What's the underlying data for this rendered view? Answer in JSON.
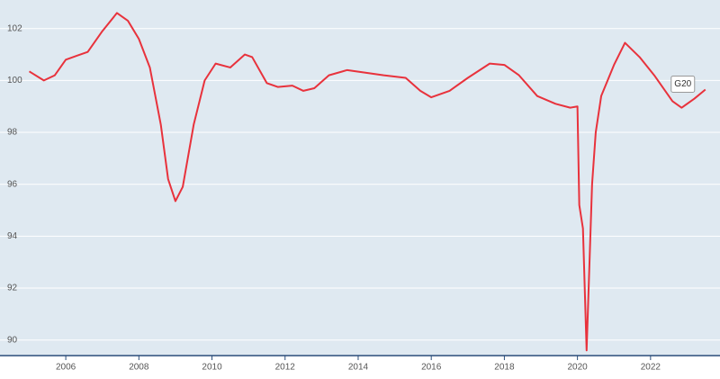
{
  "chart_data": {
    "type": "line",
    "x": [
      2005.0,
      2005.4,
      2005.7,
      2006.0,
      2006.3,
      2006.6,
      2007.0,
      2007.4,
      2007.7,
      2008.0,
      2008.3,
      2008.6,
      2008.8,
      2009.0,
      2009.2,
      2009.5,
      2009.8,
      2010.1,
      2010.5,
      2010.9,
      2011.1,
      2011.5,
      2011.8,
      2012.2,
      2012.5,
      2012.8,
      2013.2,
      2013.7,
      2014.2,
      2014.7,
      2015.3,
      2015.7,
      2016.0,
      2016.5,
      2017.0,
      2017.6,
      2018.0,
      2018.4,
      2018.9,
      2019.4,
      2019.8,
      2020.0,
      2020.05,
      2020.15,
      2020.25,
      2020.4,
      2020.5,
      2020.65,
      2021.0,
      2021.3,
      2021.7,
      2022.1,
      2022.6,
      2022.85,
      2023.2,
      2023.5
    ],
    "series": [
      {
        "name": "G20",
        "color": "#e8323c",
        "values": [
          100.35,
          100.0,
          100.2,
          100.8,
          100.95,
          101.1,
          101.9,
          102.6,
          102.3,
          101.6,
          100.5,
          98.3,
          96.2,
          95.35,
          95.9,
          98.3,
          100.0,
          100.65,
          100.5,
          101.0,
          100.9,
          99.9,
          99.75,
          99.8,
          99.6,
          99.7,
          100.2,
          100.4,
          100.3,
          100.2,
          100.1,
          99.6,
          99.35,
          99.6,
          100.1,
          100.65,
          100.6,
          100.2,
          99.4,
          99.1,
          98.95,
          99.0,
          95.2,
          94.3,
          89.6,
          96.0,
          98.0,
          99.4,
          100.6,
          101.45,
          100.9,
          100.2,
          99.2,
          98.95,
          99.3,
          99.65
        ]
      }
    ],
    "xlim": [
      2004.2,
      2023.9
    ],
    "xticks": [
      2006,
      2008,
      2010,
      2012,
      2014,
      2016,
      2018,
      2020,
      2022
    ],
    "ylim": [
      89.4,
      103.1
    ],
    "yticks": [
      90,
      92,
      94,
      96,
      98,
      100,
      102
    ],
    "grid": true
  }
}
